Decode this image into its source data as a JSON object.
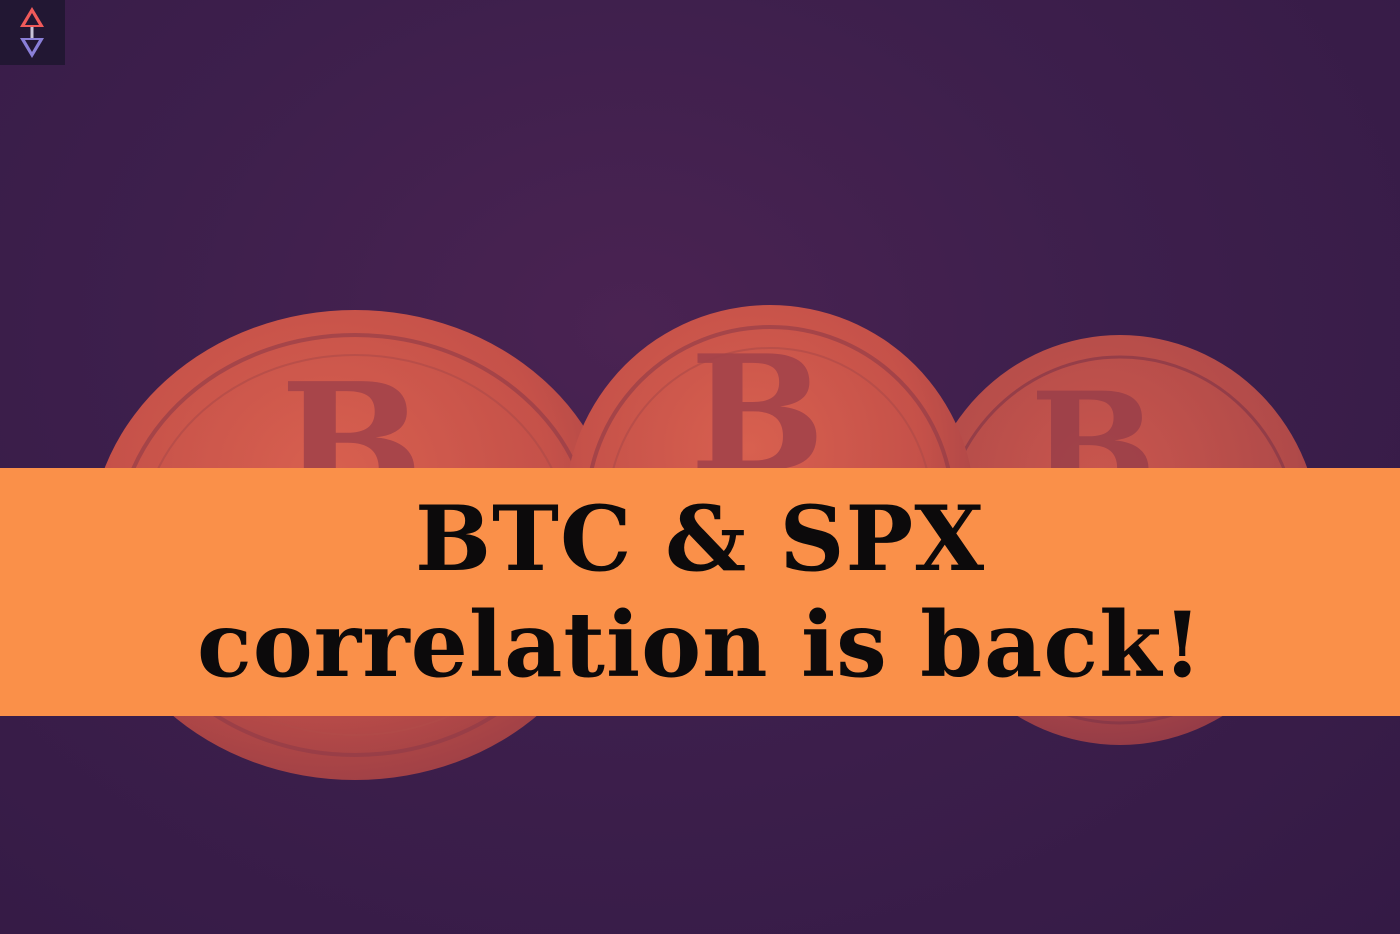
{
  "headline": {
    "line1": "BTC & SPX",
    "line2": "correlation is back!"
  },
  "logo": {
    "icon": "arrows-up-down-logo-icon"
  },
  "photo": {
    "subject": "three-bitcoin-coins",
    "coin_symbol": "B"
  },
  "colors": {
    "background": "#3d1f4c",
    "coin_tint": "#c9574c",
    "banner": "#fa9049",
    "headline_text": "#0c0a0b",
    "logo_tile": "#221733"
  }
}
